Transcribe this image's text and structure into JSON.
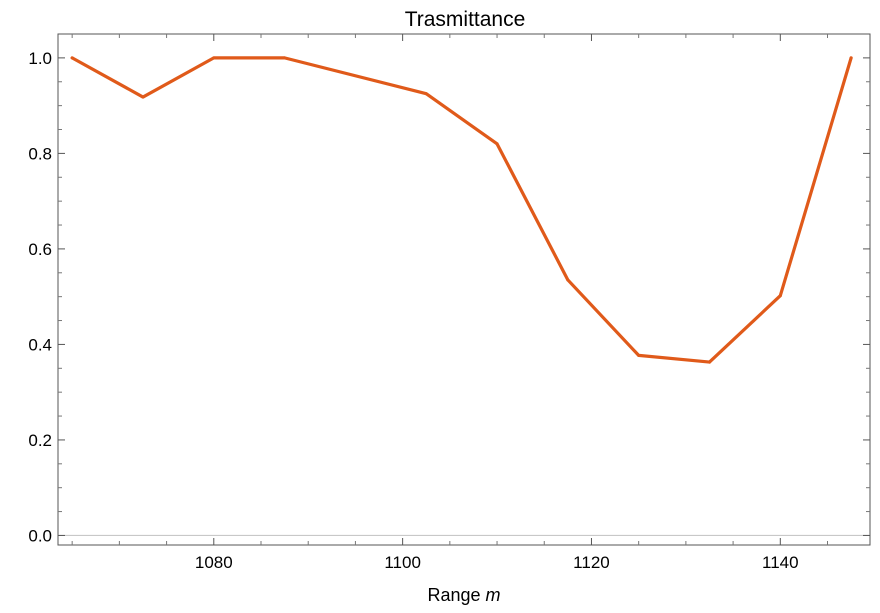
{
  "chart_data": {
    "type": "line",
    "title": "Trasmittance",
    "xlabel": {
      "prefix": "Range ",
      "variable": "m"
    },
    "ylabel": "",
    "xlim": [
      1063.5,
      1149.5
    ],
    "ylim": [
      -0.02,
      1.05
    ],
    "x_ticks": [
      1080,
      1100,
      1120,
      1140
    ],
    "y_ticks": [
      "0.0",
      "0.2",
      "0.4",
      "0.6",
      "0.8",
      "1.0"
    ],
    "grid": false,
    "series": [
      {
        "color": "#e05a1a",
        "x": [
          1065,
          1072.5,
          1080,
          1087.5,
          1102.5,
          1110,
          1117.5,
          1125,
          1132.5,
          1140,
          1147.5
        ],
        "y": [
          1.0,
          0.918,
          1.0,
          1.0,
          0.925,
          0.82,
          0.535,
          0.377,
          0.363,
          0.502,
          1.0
        ]
      }
    ],
    "zero_line_color": "#c8c8c8",
    "frame_color": "#555555"
  }
}
